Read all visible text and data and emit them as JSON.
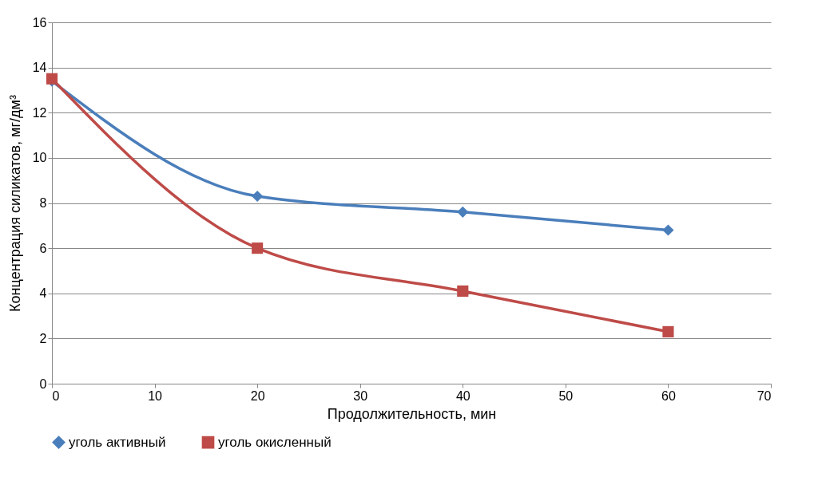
{
  "chart_data": {
    "type": "line",
    "xlabel": "Продолжительность, мин",
    "ylabel": "Концентрация силикатов, мг/дм³",
    "x": [
      0,
      20,
      40,
      60
    ],
    "series": [
      {
        "name": "уголь активный",
        "color": "#4a7ebb",
        "marker": "diamond",
        "values": [
          13.4,
          8.3,
          7.6,
          6.8
        ]
      },
      {
        "name": "уголь окисленный",
        "color": "#be4b48",
        "marker": "square",
        "values": [
          13.5,
          6.0,
          4.1,
          2.3
        ]
      }
    ],
    "xlim": [
      0,
      70
    ],
    "xticks": [
      0,
      10,
      20,
      30,
      40,
      50,
      60,
      70
    ],
    "ylim": [
      0,
      16
    ],
    "yticks": [
      0,
      2,
      4,
      6,
      8,
      10,
      12,
      14,
      16
    ],
    "grid": "y",
    "legend": "bottom"
  }
}
